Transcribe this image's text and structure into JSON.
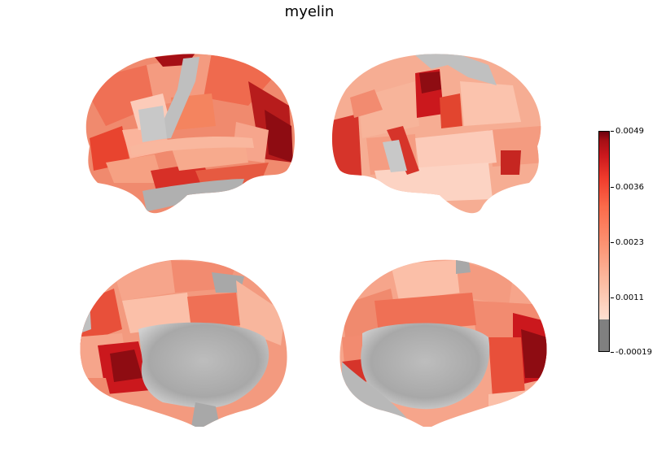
{
  "title": "myelin",
  "colorbar": {
    "ticks": [
      "0.0049",
      "0.0036",
      "0.0023",
      "0.0011",
      "-0.00019"
    ],
    "colormap": [
      "#fee0d2",
      "#fcbba1",
      "#fc9272",
      "#fb6a4a",
      "#ef3b2c",
      "#cb181d",
      "#a50f15",
      "#67000d"
    ],
    "under_color": "#808080"
  },
  "views": [
    "lateral-left",
    "lateral-right",
    "medial-left",
    "medial-right"
  ]
}
